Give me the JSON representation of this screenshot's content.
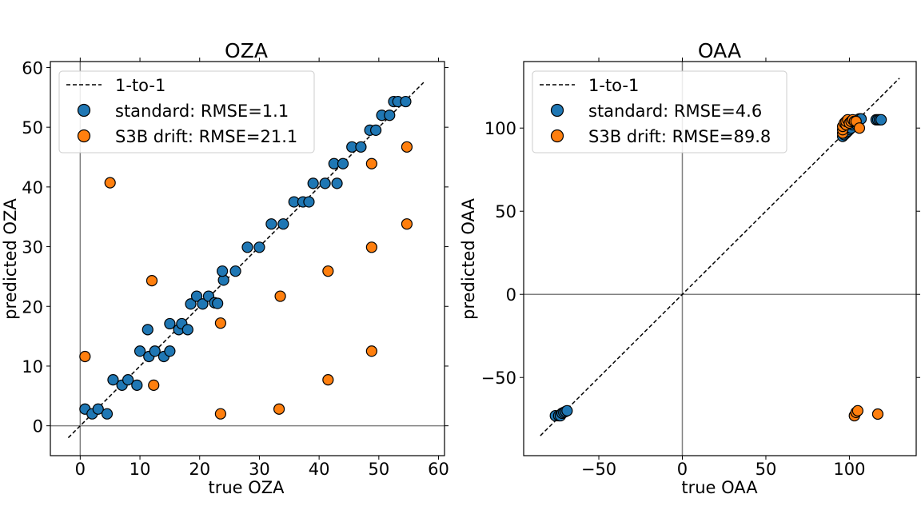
{
  "chart_data": [
    {
      "type": "scatter",
      "title": "OZA",
      "xlabel": "true OZA",
      "ylabel": "predicted OZA",
      "xlim": [
        -5,
        61
      ],
      "ylim": [
        -5,
        61
      ],
      "xticks": [
        0,
        10,
        20,
        30,
        40,
        50,
        60
      ],
      "yticks": [
        0,
        10,
        20,
        30,
        40,
        50,
        60
      ],
      "reference_line": {
        "label": "1-to-1",
        "from": [
          -2,
          -2
        ],
        "to": [
          57.5,
          57.5
        ],
        "style": "dashed",
        "color": "#000000"
      },
      "zero_lines": true,
      "grid": false,
      "legend_placement": "top-left",
      "series": [
        {
          "name": "standard: RMSE=1.1",
          "color": "#1f77b4",
          "points": [
            [
              0.8,
              2.8
            ],
            [
              2,
              2
            ],
            [
              3,
              2.8
            ],
            [
              4.5,
              2
            ],
            [
              5.5,
              7.7
            ],
            [
              7,
              6.8
            ],
            [
              8,
              7.7
            ],
            [
              9.5,
              6.8
            ],
            [
              10,
              12.5
            ],
            [
              11.5,
              11.6
            ],
            [
              12.5,
              12.5
            ],
            [
              14,
              11.6
            ],
            [
              15,
              12.5
            ],
            [
              11.3,
              16.1
            ],
            [
              15,
              17.1
            ],
            [
              16.5,
              16.1
            ],
            [
              17,
              17.1
            ],
            [
              18,
              16.1
            ],
            [
              18.5,
              20.4
            ],
            [
              19.5,
              21.7
            ],
            [
              20.5,
              20.4
            ],
            [
              21.5,
              21.7
            ],
            [
              22.5,
              20.6
            ],
            [
              23,
              20.5
            ],
            [
              24,
              24.4
            ],
            [
              23.8,
              25.9
            ],
            [
              26,
              25.9
            ],
            [
              28,
              29.9
            ],
            [
              30,
              29.9
            ],
            [
              32,
              33.8
            ],
            [
              34,
              33.8
            ],
            [
              35.8,
              37.5
            ],
            [
              37.3,
              37.5
            ],
            [
              38.3,
              37.5
            ],
            [
              39,
              40.6
            ],
            [
              41,
              40.6
            ],
            [
              43,
              40.6
            ],
            [
              42.5,
              43.9
            ],
            [
              44,
              43.9
            ],
            [
              45.5,
              46.7
            ],
            [
              47,
              46.7
            ],
            [
              48.5,
              49.5
            ],
            [
              49.5,
              49.5
            ],
            [
              50.5,
              52
            ],
            [
              51.8,
              52
            ],
            [
              52.5,
              54.3
            ],
            [
              53.2,
              54.3
            ],
            [
              54.5,
              54.3
            ]
          ]
        },
        {
          "name": "S3B drift: RMSE=21.1",
          "color": "#ff7f0e",
          "points": [
            [
              0.8,
              11.6
            ],
            [
              5,
              40.7
            ],
            [
              12,
              24.3
            ],
            [
              12.3,
              6.8
            ],
            [
              23.5,
              17.2
            ],
            [
              23.5,
              2
            ],
            [
              33.5,
              21.7
            ],
            [
              33.3,
              2.8
            ],
            [
              41.5,
              25.9
            ],
            [
              41.5,
              7.7
            ],
            [
              48.8,
              43.9
            ],
            [
              48.8,
              29.9
            ],
            [
              48.8,
              12.5
            ],
            [
              54.7,
              46.7
            ],
            [
              54.7,
              33.8
            ]
          ]
        }
      ]
    },
    {
      "type": "scatter",
      "title": "OAA",
      "xlabel": "true OAA",
      "ylabel": "predicted OAA",
      "xlim": [
        -95,
        140
      ],
      "ylim": [
        -97,
        140
      ],
      "xticks": [
        -50,
        0,
        50,
        100
      ],
      "yticks": [
        -50,
        0,
        50,
        100
      ],
      "reference_line": {
        "label": "1-to-1",
        "from": [
          -85,
          -85
        ],
        "to": [
          130,
          130
        ],
        "style": "dashed",
        "color": "#000000"
      },
      "zero_lines": true,
      "grid": false,
      "legend_placement": "top-left",
      "series": [
        {
          "name": "standard: RMSE=4.6",
          "color": "#1f77b4",
          "points": [
            [
              -76,
              -73
            ],
            [
              -74,
              -73
            ],
            [
              -73,
              -73
            ],
            [
              -72,
              -71.5
            ],
            [
              -71,
              -71
            ],
            [
              -70,
              -70.5
            ],
            [
              -69,
              -70
            ],
            [
              96,
              95
            ],
            [
              97,
              96
            ],
            [
              98,
              97
            ],
            [
              99,
              98
            ],
            [
              100,
              99
            ],
            [
              101,
              100
            ],
            [
              102,
              102
            ],
            [
              103,
              103
            ],
            [
              104,
              104
            ],
            [
              105,
              105
            ],
            [
              106,
              105.5
            ],
            [
              107,
              105.5
            ],
            [
              116,
              105
            ],
            [
              117,
              105
            ],
            [
              118,
              105
            ],
            [
              119,
              105
            ]
          ]
        },
        {
          "name": "S3B drift: RMSE=89.8",
          "color": "#ff7f0e",
          "points": [
            [
              96,
              97
            ],
            [
              96,
              99
            ],
            [
              96,
              101
            ],
            [
              97,
              103
            ],
            [
              98,
              102
            ],
            [
              98,
              104
            ],
            [
              99,
              105
            ],
            [
              100,
              103
            ],
            [
              101,
              104
            ],
            [
              102,
              105
            ],
            [
              103,
              104
            ],
            [
              104,
              104
            ],
            [
              106,
              100
            ],
            [
              103,
              -73
            ],
            [
              104,
              -71
            ],
            [
              105,
              -70
            ],
            [
              117,
              -72
            ]
          ]
        }
      ]
    }
  ]
}
